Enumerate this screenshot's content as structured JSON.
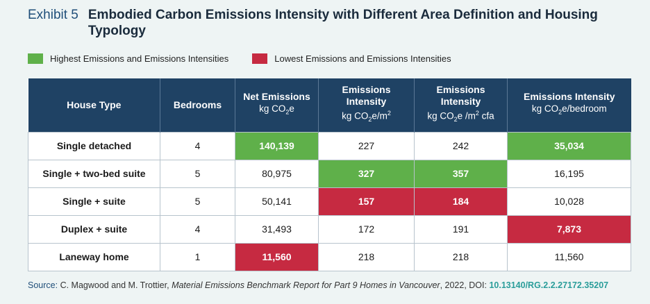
{
  "exhibit_label": "Exhibit 5",
  "title": "Embodied Carbon Emissions Intensity with Different Area Definition and Housing Typology",
  "colors": {
    "highest": "#5fb04a",
    "lowest": "#c62a41",
    "header": "#1f4264"
  },
  "legend": {
    "highest": "Highest Emissions and Emissions Intensities",
    "lowest": "Lowest Emissions and Emissions Intensities"
  },
  "columns": {
    "house_type": "House Type",
    "bedrooms": "Bedrooms",
    "net_emissions": {
      "title": "Net Emissions",
      "unit_a": "kg CO",
      "unit_sub": "2",
      "unit_b": "e"
    },
    "intensity_m2": {
      "title": "Emissions Intensity",
      "unit_a": "kg CO",
      "unit_sub": "2",
      "unit_b": "e/m",
      "unit_sup": "2"
    },
    "intensity_cfa": {
      "title": "Emissions Intensity",
      "unit_a": "kg CO",
      "unit_sub": "2",
      "unit_b": "e /m",
      "unit_sup": "2",
      "unit_c": " cfa"
    },
    "intensity_bed": {
      "title": "Emissions Intensity",
      "unit_a": "kg CO",
      "unit_sub": "2",
      "unit_b": "e/bedroom"
    }
  },
  "rows": [
    {
      "house_type": "Single detached",
      "bedrooms": "4",
      "net": "140,139",
      "m2": "227",
      "cfa": "242",
      "bed": "35,034"
    },
    {
      "house_type": "Single + two-bed suite",
      "bedrooms": "5",
      "net": "80,975",
      "m2": "327",
      "cfa": "357",
      "bed": "16,195"
    },
    {
      "house_type": "Single + suite",
      "bedrooms": "5",
      "net": "50,141",
      "m2": "157",
      "cfa": "184",
      "bed": "10,028"
    },
    {
      "house_type": "Duplex + suite",
      "bedrooms": "4",
      "net": "31,493",
      "m2": "172",
      "cfa": "191",
      "bed": "7,873"
    },
    {
      "house_type": "Laneway home",
      "bedrooms": "1",
      "net": "11,560",
      "m2": "218",
      "cfa": "218",
      "bed": "11,560"
    }
  ],
  "source": {
    "label": "Source:",
    "authors": " C. Magwood and M. Trottier, ",
    "work": "Material Emissions Benchmark Report for Part 9 Homes in Vancouver",
    "rest": ", 2022, DOI: ",
    "doi": "10.13140/RG.2.2.27172.35207"
  }
}
